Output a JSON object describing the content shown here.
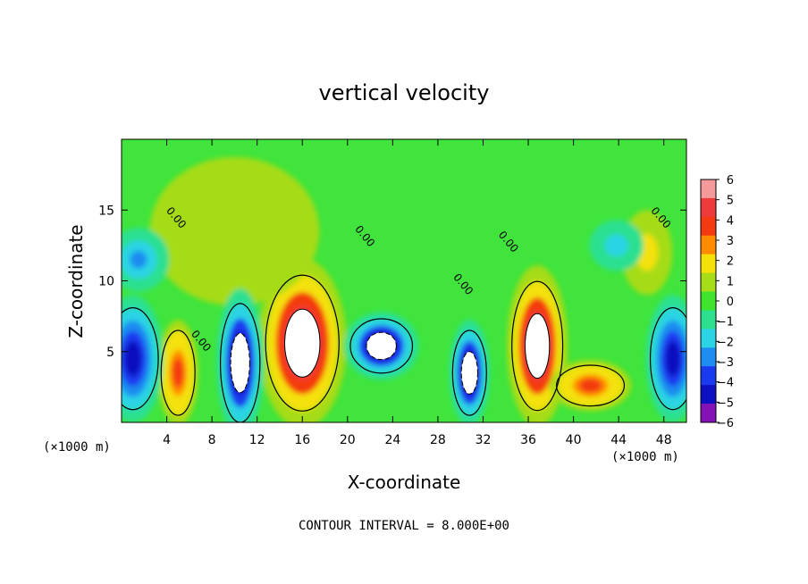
{
  "chart_data": {
    "type": "heatmap",
    "title": "vertical velocity",
    "xlabel": "X-coordinate",
    "ylabel": "Z-coordinate",
    "x_unit_left": "(×1000 m)",
    "x_unit_right": "(×1000 m)",
    "footer": "CONTOUR INTERVAL = 8.000E+00",
    "xlim": [
      0,
      50
    ],
    "ylim": [
      0,
      20
    ],
    "xticks": [
      4,
      8,
      12,
      16,
      20,
      24,
      28,
      32,
      36,
      40,
      44,
      48
    ],
    "xtick_labels": [
      "4",
      "8",
      "12",
      "16",
      "20",
      "24",
      "28",
      "32",
      "36",
      "40",
      "44",
      "48"
    ],
    "yticks": [
      5,
      10,
      15
    ],
    "ytick_labels": [
      "5",
      "10",
      "15"
    ],
    "colorbar": {
      "min": -6,
      "max": 6,
      "ticks": [
        "6",
        "5",
        "4",
        "3",
        "2",
        "1",
        "0",
        "−1",
        "−2",
        "−3",
        "−4",
        "−5",
        "−6"
      ],
      "colors": [
        "#f49a9a",
        "#ee3a3a",
        "#f43a10",
        "#ff8c00",
        "#f4e10a",
        "#a6dc18",
        "#3ee42e",
        "#2ce090",
        "#2ad4e4",
        "#1e8cf0",
        "#1a3af0",
        "#0c10c0",
        "#8412b4"
      ]
    },
    "contour_labels": [
      {
        "text": "0.00",
        "x": 4.6,
        "z": 14.3
      },
      {
        "text": "0.00",
        "x": 6.8,
        "z": 5.6
      },
      {
        "text": "0.00",
        "x": 21.3,
        "z": 13.0
      },
      {
        "text": "0.00",
        "x": 30.0,
        "z": 9.6
      },
      {
        "text": "0.00",
        "x": 34.0,
        "z": 12.6
      },
      {
        "text": "0.00",
        "x": 47.5,
        "z": 14.3
      }
    ],
    "features": [
      {
        "type": "updraft",
        "x": 16.0,
        "z": 5.6,
        "value": 8,
        "rx": 2.6,
        "rz": 4.0
      },
      {
        "type": "updraft",
        "x": 36.8,
        "z": 5.4,
        "value": 8,
        "rx": 1.8,
        "rz": 3.8
      },
      {
        "type": "updraft",
        "x": 5.0,
        "z": 3.5,
        "value": 4,
        "rx": 1.2,
        "rz": 2.5
      },
      {
        "type": "updraft",
        "x": 41.5,
        "z": 2.6,
        "value": 4,
        "rx": 2.4,
        "rz": 1.2
      },
      {
        "type": "updraft",
        "x": 46.5,
        "z": 12.0,
        "value": 2,
        "rx": 1.5,
        "rz": 2.0
      },
      {
        "type": "updraft",
        "x": 10.0,
        "z": 13.5,
        "value": 1,
        "rx": 5.0,
        "rz": 3.5
      },
      {
        "type": "downdraft",
        "x": 10.5,
        "z": 4.2,
        "value": -8,
        "rx": 1.4,
        "rz": 3.5
      },
      {
        "type": "downdraft",
        "x": 23.0,
        "z": 5.4,
        "value": -8,
        "rx": 2.2,
        "rz": 1.6
      },
      {
        "type": "downdraft",
        "x": 30.8,
        "z": 3.5,
        "value": -8,
        "rx": 1.2,
        "rz": 2.5
      },
      {
        "type": "downdraft",
        "x": 1.0,
        "z": 4.5,
        "value": -5,
        "rx": 1.8,
        "rz": 3.0
      },
      {
        "type": "downdraft",
        "x": 48.8,
        "z": 4.5,
        "value": -5,
        "rx": 1.6,
        "rz": 3.0
      },
      {
        "type": "downdraft",
        "x": 1.5,
        "z": 11.5,
        "value": -3,
        "rx": 1.8,
        "rz": 1.5
      },
      {
        "type": "downdraft",
        "x": 43.8,
        "z": 12.5,
        "value": -2,
        "rx": 1.6,
        "rz": 1.2
      }
    ]
  }
}
